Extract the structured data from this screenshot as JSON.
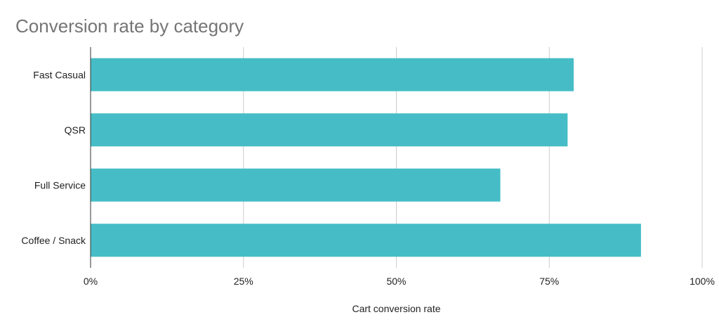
{
  "chart_data": {
    "type": "bar",
    "orientation": "horizontal",
    "title": "Conversion rate by category",
    "xlabel": "Cart conversion rate",
    "ylabel": "",
    "categories": [
      "Fast Casual",
      "QSR",
      "Full Service",
      "Coffee / Snack"
    ],
    "values": [
      0.79,
      0.78,
      0.67,
      0.9
    ],
    "xlim": [
      0,
      1
    ],
    "xticks": [
      0,
      0.25,
      0.5,
      0.75,
      1
    ],
    "xtick_labels": [
      "0%",
      "25%",
      "50%",
      "75%",
      "100%"
    ],
    "grid": "vertical",
    "legend": "none",
    "bar_color": "#46bdc6",
    "grid_color": "#cccccc",
    "axis_color": "#333333"
  }
}
